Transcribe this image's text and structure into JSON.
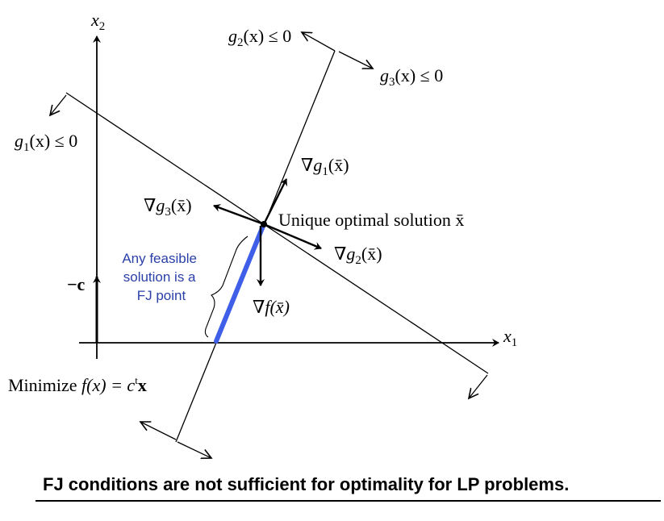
{
  "axes": {
    "x1": "x",
    "x1_sub": "1",
    "x2": "x",
    "x2_sub": "2"
  },
  "constraints": {
    "g1": {
      "pre": "g",
      "sub": "1",
      "post": "(x) ≤ 0"
    },
    "g2": {
      "pre": "g",
      "sub": "2",
      "post": "(x) ≤ 0"
    },
    "g3": {
      "pre": "g",
      "sub": "3",
      "post": "(x) ≤ 0"
    }
  },
  "gradients": {
    "grad_g1": {
      "pre": "∇g",
      "sub": "1",
      "post": "(x̄)"
    },
    "grad_g2": {
      "pre": "∇g",
      "sub": "2",
      "post": "(x̄)"
    },
    "grad_g3": {
      "pre": "∇g",
      "sub": "3",
      "post": "(x̄)"
    },
    "grad_f": "∇f(x̄)"
  },
  "optimal_label": "Unique optimal solution x̄",
  "neg_c": "−c",
  "objective": {
    "pre": "Minimize ",
    "f": "f(x) = c",
    "sup": "t",
    "post": "x"
  },
  "feasible_note": [
    "Any feasible",
    "solution is a",
    "FJ point"
  ],
  "caption": "FJ conditions are not sufficient for optimality for LP problems.",
  "colors": {
    "feasible_segment": "#3f5fe8",
    "note_text": "#2a3fa8"
  }
}
